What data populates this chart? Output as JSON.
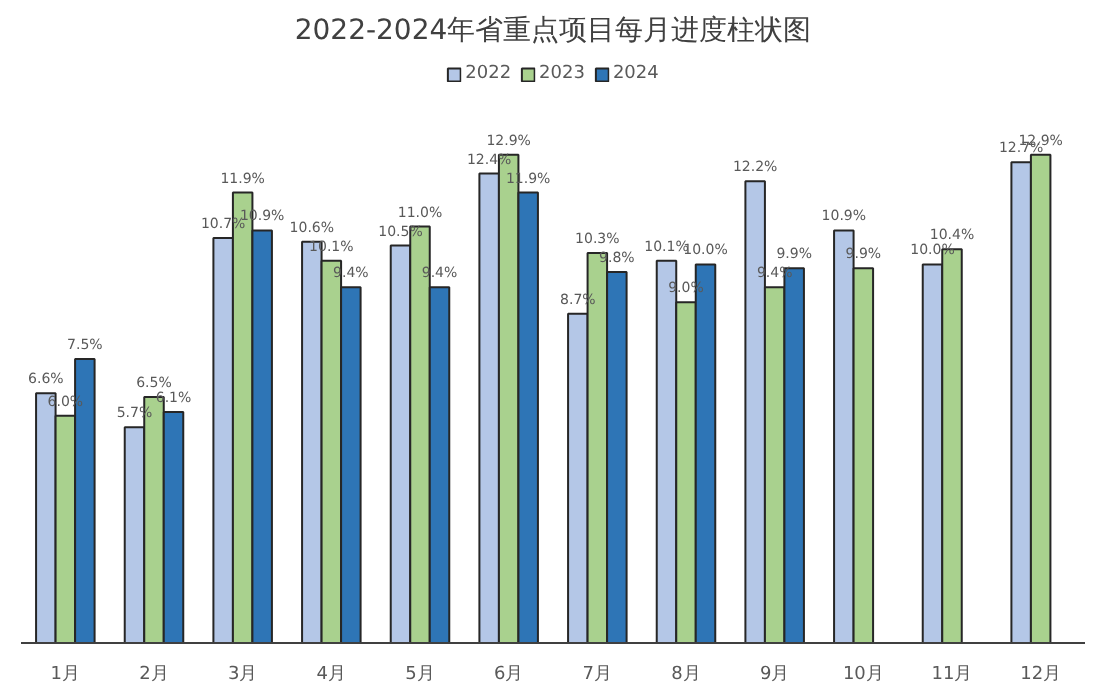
{
  "chart_data": {
    "type": "bar",
    "title": "2022-2024年省重点项目每月进度柱状图",
    "categories": [
      "1月",
      "2月",
      "3月",
      "4月",
      "5月",
      "6月",
      "7月",
      "8月",
      "9月",
      "10月",
      "11月",
      "12月"
    ],
    "series": [
      {
        "name": "2022",
        "color": "#b4c7e7",
        "values": [
          6.6,
          5.7,
          10.7,
          10.6,
          10.5,
          12.4,
          8.7,
          10.1,
          12.2,
          10.9,
          10.0,
          12.7
        ],
        "value_labels": [
          "6.6%",
          "5.7%",
          "10.7%",
          "10.6%",
          "10.5%",
          "12.4%",
          "8.7%",
          "10.1%",
          "12.2%",
          "10.9%",
          "10.0%",
          "12.7%"
        ]
      },
      {
        "name": "2023",
        "color": "#a9d18e",
        "values": [
          6.0,
          6.5,
          11.9,
          10.1,
          11.0,
          12.9,
          10.3,
          9.0,
          9.4,
          9.9,
          10.4,
          12.9
        ],
        "value_labels": [
          "6.0%",
          "6.5%",
          "11.9%",
          "10.1%",
          "11.0%",
          "12.9%",
          "10.3%",
          "9.0%",
          "9.4%",
          "9.9%",
          "10.4%",
          "12.9%"
        ]
      },
      {
        "name": "2024",
        "color": "#2e75b6",
        "values": [
          7.5,
          6.1,
          10.9,
          9.4,
          9.4,
          11.9,
          9.8,
          10.0,
          9.9,
          null,
          null,
          null
        ],
        "value_labels": [
          "7.5%",
          "6.1%",
          "10.9%",
          "9.4%",
          "9.4%",
          "11.9%",
          "9.8%",
          "10.0%",
          "9.9%",
          null,
          null,
          null
        ]
      }
    ],
    "legend": "top"
  }
}
